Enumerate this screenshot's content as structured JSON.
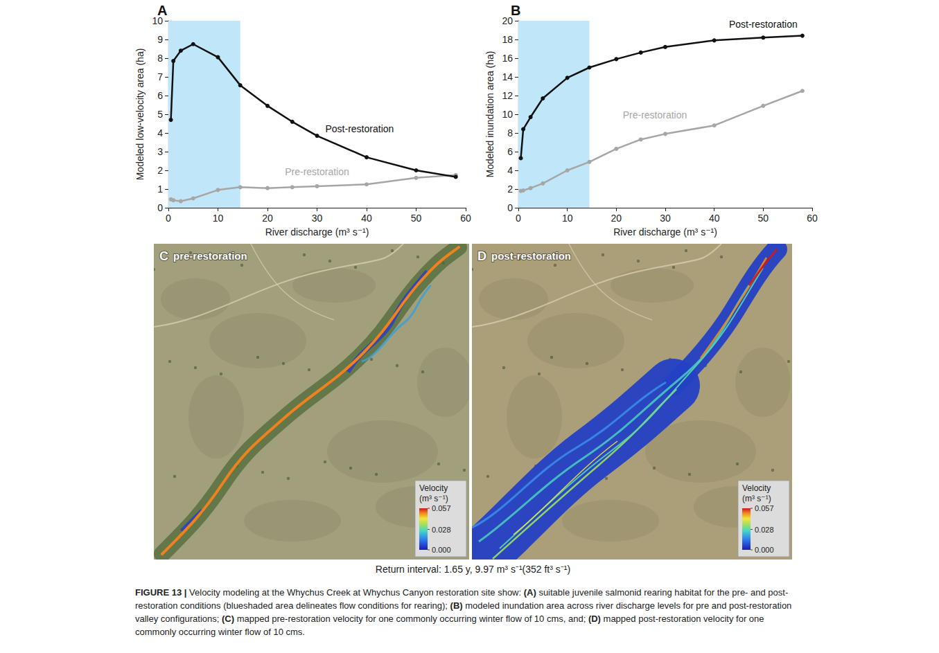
{
  "chart_data": [
    {
      "type": "line",
      "title": "A",
      "xlabel": "River discharge (m³ s⁻¹)",
      "ylabel": "Modeled low-velocity area (ha)",
      "x": [
        0.5,
        1,
        2.5,
        5,
        10,
        14.5,
        20,
        25,
        30,
        40,
        50,
        58
      ],
      "series": [
        {
          "name": "Post-restoration",
          "color": "#111111",
          "marker": "circle",
          "line_style": "solid",
          "values": [
            4.7,
            7.85,
            8.4,
            8.75,
            8.05,
            6.55,
            5.45,
            4.6,
            3.85,
            2.7,
            2.0,
            1.65
          ]
        },
        {
          "name": "Pre-restoration",
          "color": "#a6a6a6",
          "marker": "circle",
          "line_style": "solid",
          "values": [
            0.45,
            0.4,
            0.35,
            0.5,
            0.95,
            1.1,
            1.05,
            1.1,
            1.15,
            1.25,
            1.6,
            1.75
          ]
        }
      ],
      "xlim": [
        0,
        60
      ],
      "xticks": [
        0,
        10,
        20,
        30,
        40,
        50,
        60
      ],
      "ylim": [
        0,
        10
      ],
      "yticks": [
        0,
        1,
        2,
        3,
        4,
        5,
        6,
        7,
        8,
        9,
        10
      ],
      "grid": false,
      "rearing_flow_range": [
        0,
        14.5
      ]
    },
    {
      "type": "line",
      "title": "B",
      "xlabel": "River discharge (m³ s⁻¹)",
      "ylabel": "Modeled inundation area (ha)",
      "x": [
        0.5,
        1,
        2.5,
        5,
        10,
        14.5,
        20,
        25,
        30,
        40,
        50,
        58
      ],
      "series": [
        {
          "name": "Post-restoration",
          "color": "#111111",
          "marker": "circle",
          "line_style": "solid",
          "values": [
            5.3,
            8.4,
            9.7,
            11.7,
            13.9,
            15.0,
            15.9,
            16.6,
            17.2,
            17.9,
            18.2,
            18.4
          ]
        },
        {
          "name": "Pre-restoration",
          "color": "#a6a6a6",
          "marker": "circle",
          "line_style": "solid",
          "values": [
            1.8,
            1.85,
            2.1,
            2.6,
            4.0,
            4.9,
            6.3,
            7.3,
            7.9,
            8.8,
            10.9,
            12.5
          ]
        }
      ],
      "xlim": [
        0,
        60
      ],
      "xticks": [
        0,
        10,
        20,
        30,
        40,
        50,
        60
      ],
      "ylim": [
        0,
        20
      ],
      "yticks": [
        0,
        2,
        4,
        6,
        8,
        10,
        12,
        14,
        16,
        18,
        20
      ],
      "grid": false,
      "rearing_flow_range": [
        0,
        14.5
      ]
    }
  ],
  "maps": [
    {
      "panel": "C",
      "title": "pre-restoration",
      "colorbar": {
        "title": "Velocity",
        "unit": "(m³ s⁻¹)",
        "range": [
          0,
          0.057
        ],
        "ticks": [
          0.057,
          0.028,
          {
            "value": 0,
            "label": "0.000"
          }
        ]
      }
    },
    {
      "panel": "D",
      "title": "post-restoration",
      "colorbar": {
        "title": "Velocity",
        "unit": "(m³ s⁻¹)",
        "range": [
          0,
          0.057
        ],
        "ticks": [
          0.057,
          0.028,
          {
            "value": 0,
            "label": "0.000"
          }
        ]
      }
    }
  ],
  "map_note": "Return interval: 1.65 y, 9.97 m³ s⁻¹(352 ft³ s⁻¹)",
  "caption": {
    "label": "FIGURE 13 |",
    "text": "Velocity modeling at the Whychus Creek at Whychus Canyon restoration site show: (A) suitable juvenile salmonid rearing habitat for the pre- and post-restoration conditions (blueshaded area delineates flow conditions for rearing); (B) modeled inundation area across river discharge levels for pre and post-restoration valley configurations; (C) mapped pre-restoration velocity for one commonly occurring winter flow of 10 cms, and; (D) mapped post-restoration velocity for one commonly occurring winter flow of 10 cms."
  }
}
